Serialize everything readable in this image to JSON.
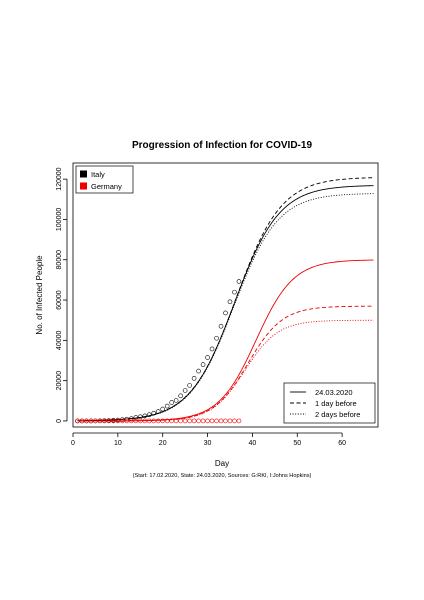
{
  "figure": {
    "title": "Progression of Infection for COVID-19",
    "source_note": "(Start: 17.02.2020, State: 24.03.2020, Sources: G:RKI, I:Johns Hopkins)"
  },
  "chart_data": {
    "type": "line",
    "title": "Progression of Infection for COVID-19",
    "xlabel": "Day",
    "ylabel": "No. of Infected People",
    "xlim": [
      0,
      68
    ],
    "ylim": [
      -3000,
      128000
    ],
    "x_ticks": [
      0,
      10,
      20,
      30,
      40,
      50,
      60
    ],
    "y_ticks": [
      0,
      20000,
      40000,
      60000,
      80000,
      100000,
      120000
    ],
    "grid": false,
    "country_legend": {
      "position": "top-left",
      "entries": [
        {
          "label": "Italy",
          "color": "#000000"
        },
        {
          "label": "Germany",
          "color": "#ee0000"
        }
      ]
    },
    "line_legend": {
      "position": "bottom-right",
      "entries": [
        {
          "label": "24.03.2020",
          "dash": "solid"
        },
        {
          "label": "1 day before",
          "dash": "dashed"
        },
        {
          "label": "2 days before",
          "dash": "dotted"
        }
      ]
    },
    "series": [
      {
        "name": "Italy",
        "color": "#000000",
        "observed": {
          "x": [
            1,
            2,
            3,
            4,
            5,
            6,
            7,
            8,
            9,
            10,
            11,
            12,
            13,
            14,
            15,
            16,
            17,
            18,
            19,
            20,
            21,
            22,
            23,
            24,
            25,
            26,
            27,
            28,
            29,
            30,
            31,
            32,
            33,
            34,
            35,
            36,
            37
          ],
          "y": [
            3,
            3,
            3,
            3,
            20,
            79,
            157,
            229,
            323,
            470,
            655,
            889,
            1128,
            1694,
            2036,
            2502,
            3089,
            3858,
            4636,
            5883,
            7375,
            9172,
            10149,
            12462,
            15113,
            17660,
            21157,
            24747,
            27980,
            31506,
            35713,
            41035,
            47021,
            53578,
            59138,
            63927,
            69176
          ]
        },
        "fits": [
          {
            "dash": "solid",
            "K": 117000,
            "r": 0.2,
            "t0": 36
          },
          {
            "dash": "dashed",
            "K": 121000,
            "r": 0.197,
            "t0": 36.3
          },
          {
            "dash": "dotted",
            "K": 113000,
            "r": 0.203,
            "t0": 35.8
          }
        ]
      },
      {
        "name": "Germany",
        "color": "#ee0000",
        "observed": {
          "x": [
            1,
            2,
            3,
            4,
            5,
            6,
            7,
            8,
            9,
            10,
            11,
            12,
            13,
            14,
            15,
            16,
            17,
            18,
            19,
            20,
            21,
            22,
            23,
            24,
            25,
            26,
            27,
            28,
            29,
            30,
            31,
            32,
            33,
            34,
            35,
            36,
            37
          ],
          "y": [
            16,
            16,
            16,
            16,
            16,
            16,
            16,
            16,
            16,
            16,
            16,
            16,
            16,
            16,
            16,
            16,
            16,
            16,
            16,
            16,
            16,
            16,
            16,
            16,
            16,
            16,
            16,
            16,
            16,
            16,
            16,
            16,
            16,
            16,
            16,
            16,
            16
          ]
        },
        "fits": [
          {
            "dash": "solid",
            "K": 80000,
            "r": 0.24,
            "t0": 40.8
          },
          {
            "dash": "dashed",
            "K": 57000,
            "r": 0.26,
            "t0": 39
          },
          {
            "dash": "dotted",
            "K": 50000,
            "r": 0.27,
            "t0": 38.3
          }
        ]
      }
    ]
  }
}
